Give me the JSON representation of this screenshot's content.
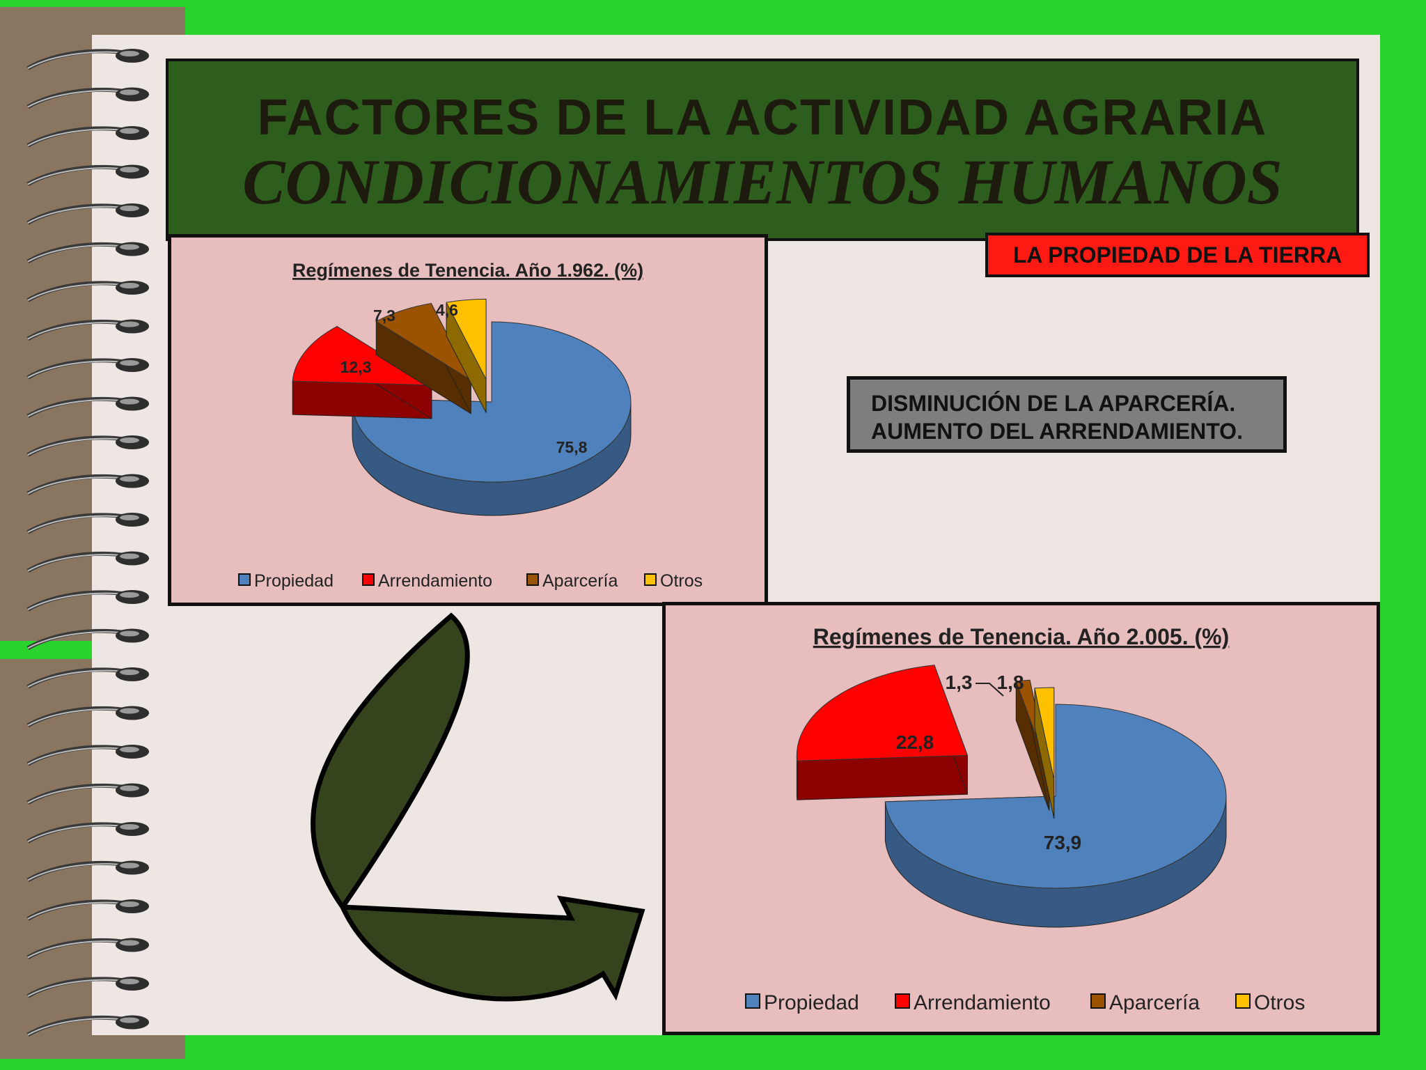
{
  "header": {
    "title_line1": "FACTORES DE LA ACTIVIDAD AGRARIA",
    "title_line2": "CONDICIONAMIENTOS HUMANOS"
  },
  "banner": {
    "text": "LA PROPIEDAD DE LA TIERRA"
  },
  "callout": {
    "line1": "DISMINUCIÓN DE LA APARCERÍA.",
    "line2": "AUMENTO DEL ARRENDAMIENTO."
  },
  "colors": {
    "background": "#2ad22e",
    "title_bg": "#2d5e1e",
    "banner_bg": "#ff1a14",
    "chart_bg": "#e8bdbd",
    "propiedad": "#4f81bd",
    "arrendamiento": "#ff0000",
    "aparceria": "#9c5300",
    "otros": "#ffc000",
    "arrow": "#36441e"
  },
  "chart_data": [
    {
      "type": "pie",
      "title": "Regímenes de Tenencia. Año 1.962. (%)",
      "categories": [
        "Propiedad",
        "Arrendamiento",
        "Aparcería",
        "Otros"
      ],
      "values": [
        75.8,
        12.3,
        7.3,
        4.6
      ],
      "labels": [
        "75,8",
        "12,3",
        "7,3",
        "4,6"
      ],
      "legend": "bottom",
      "style": "3d-exploded"
    },
    {
      "type": "pie",
      "title": "Regímenes de Tenencia. Año 2.005. (%)",
      "categories": [
        "Propiedad",
        "Arrendamiento",
        "Aparcería",
        "Otros"
      ],
      "values": [
        73.9,
        22.8,
        1.3,
        1.8
      ],
      "labels": [
        "73,9",
        "22,8",
        "1,3",
        "1,8"
      ],
      "legend": "bottom",
      "style": "3d-exploded"
    }
  ]
}
